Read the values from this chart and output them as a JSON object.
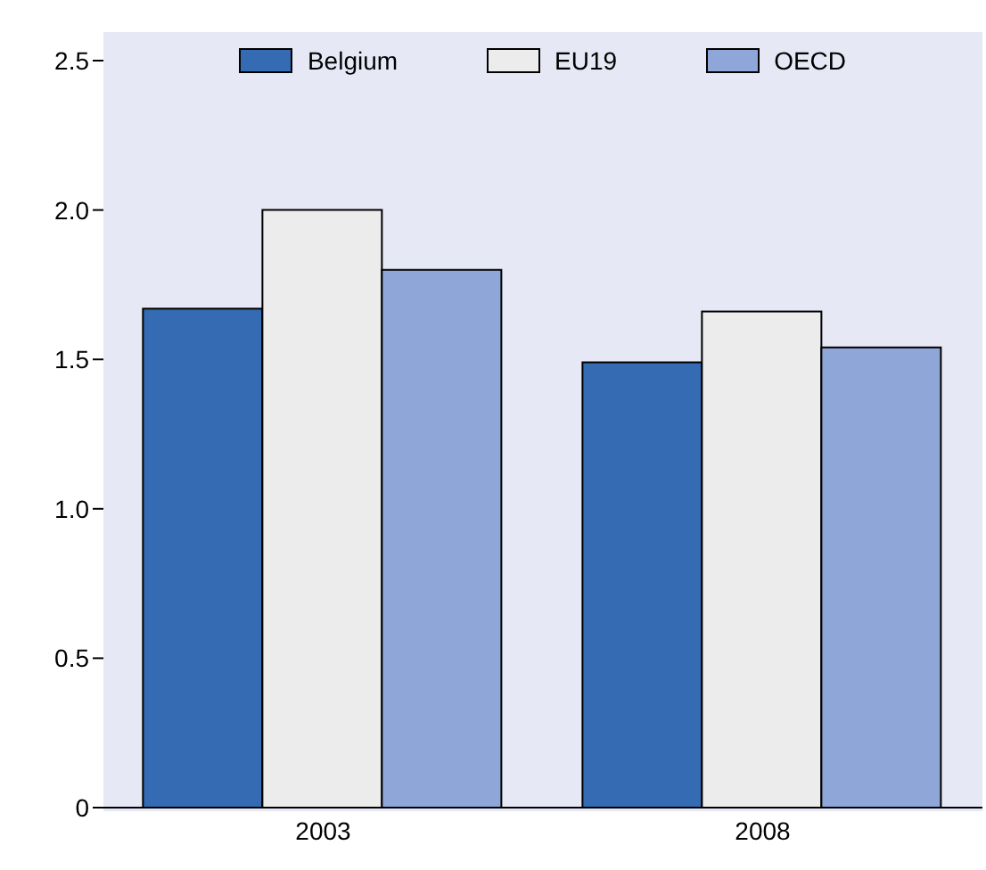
{
  "chart_data": {
    "type": "bar",
    "categories": [
      "2003",
      "2008"
    ],
    "series": [
      {
        "name": "Belgium",
        "color": "#346bb3",
        "values": [
          1.67,
          1.49
        ]
      },
      {
        "name": "EU19",
        "color": "#ececec",
        "values": [
          2.0,
          1.66
        ]
      },
      {
        "name": "OECD",
        "color": "#8fa7d8",
        "values": [
          1.8,
          1.54
        ]
      }
    ],
    "ylim": [
      0,
      2.5
    ],
    "yticks": [
      {
        "value": 0,
        "label": "0"
      },
      {
        "value": 0.5,
        "label": "0.5"
      },
      {
        "value": 1,
        "label": "1.0"
      },
      {
        "value": 1.5,
        "label": "1.5"
      },
      {
        "value": 2,
        "label": "2.0"
      },
      {
        "value": 2.5,
        "label": "2.5"
      }
    ],
    "legend": "top"
  }
}
